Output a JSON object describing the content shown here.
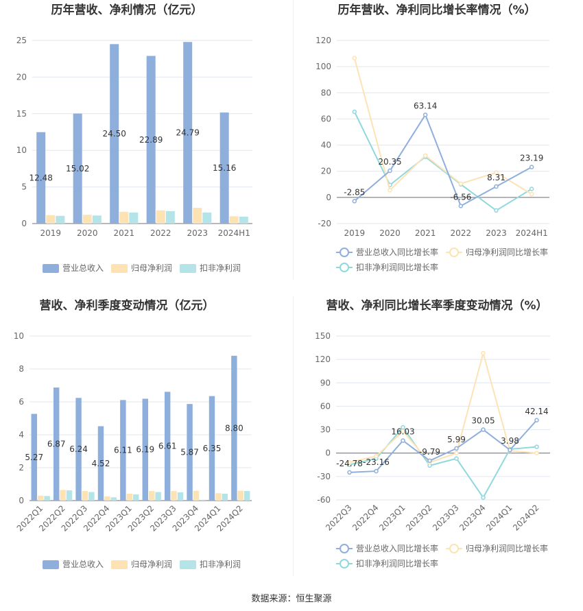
{
  "source": "数据来源：恒生聚源",
  "colors": {
    "revenue": "#8eaedc",
    "netprofit": "#fde3b4",
    "deducted": "#b4e4e8",
    "l_revenue": "#8eaedc",
    "l_netprofit": "#fde3b4",
    "l_deducted": "#8fd8dd"
  },
  "chart_data": [
    {
      "type": "bar",
      "title": "历年营收、净利情况（亿元）",
      "categories": [
        "2019",
        "2020",
        "2021",
        "2022",
        "2023",
        "2024H1"
      ],
      "series": [
        {
          "name": "营业总收入",
          "values": [
            12.48,
            15.02,
            24.5,
            22.89,
            24.79,
            15.16
          ],
          "labels": [
            "12.48",
            "15.02",
            "24.50",
            "22.89",
            "24.79",
            "15.16"
          ]
        },
        {
          "name": "归母净利润",
          "values": [
            1.15,
            1.2,
            1.6,
            1.8,
            2.15,
            1.0
          ]
        },
        {
          "name": "扣非净利润",
          "values": [
            1.05,
            1.1,
            1.5,
            1.7,
            1.5,
            0.95
          ]
        }
      ],
      "ylim": [
        0,
        25
      ],
      "yticks": [
        0,
        5,
        10,
        15,
        20,
        25
      ]
    },
    {
      "type": "line",
      "title": "历年营收、净利同比增长率情况（%）",
      "categories": [
        "2019",
        "2020",
        "2021",
        "2022",
        "2023",
        "2024H1"
      ],
      "series": [
        {
          "name": "营业总收入同比增长率",
          "values": [
            -2.85,
            20.35,
            63.14,
            -6.56,
            8.31,
            23.19
          ],
          "labels": [
            "-2.85",
            "20.35",
            "63.14",
            "-6.56",
            "8.31",
            "23.19"
          ]
        },
        {
          "name": "归母净利润同比增长率",
          "values": [
            106.5,
            5.5,
            32.0,
            10.5,
            19.0,
            2.5
          ]
        },
        {
          "name": "扣非净利润同比增长率",
          "values": [
            65.5,
            9.5,
            31.0,
            10.0,
            -10.0,
            6.5
          ]
        }
      ],
      "ylim": [
        -20,
        120
      ],
      "yticks": [
        -20,
        0,
        20,
        40,
        60,
        80,
        100,
        120
      ]
    },
    {
      "type": "bar",
      "title": "营收、净利季度变动情况（亿元）",
      "categories": [
        "2022Q1",
        "2022Q2",
        "2022Q3",
        "2022Q4",
        "2023Q1",
        "2023Q2",
        "2023Q3",
        "2023Q4",
        "2024Q1",
        "2024Q2"
      ],
      "series": [
        {
          "name": "营业总收入",
          "values": [
            5.27,
            6.87,
            6.24,
            4.52,
            6.11,
            6.19,
            6.61,
            5.87,
            6.35,
            8.8
          ],
          "labels": [
            "5.27",
            "6.87",
            "6.24",
            "4.52",
            "6.11",
            "6.19",
            "6.61",
            "5.87",
            "6.35",
            "8.80"
          ]
        },
        {
          "name": "归母净利润",
          "values": [
            0.3,
            0.65,
            0.58,
            0.25,
            0.42,
            0.58,
            0.58,
            0.6,
            0.45,
            0.6
          ]
        },
        {
          "name": "扣非净利润",
          "values": [
            0.28,
            0.62,
            0.52,
            0.2,
            0.38,
            0.52,
            0.5,
            0.05,
            0.42,
            0.58
          ]
        }
      ],
      "ylim": [
        0,
        10
      ],
      "yticks": [
        0,
        2,
        4,
        6,
        8,
        10
      ]
    },
    {
      "type": "line",
      "title": "营收、净利同比增长率季度变动情况（%）",
      "categories": [
        "2022Q3",
        "2022Q4",
        "2023Q1",
        "2023Q2",
        "2023Q3",
        "2023Q4",
        "2024Q1",
        "2024Q2"
      ],
      "series": [
        {
          "name": "营业总收入同比增长率",
          "values": [
            -24.78,
            -23.16,
            16.03,
            -9.79,
            5.99,
            30.05,
            3.98,
            42.14
          ],
          "labels": [
            "-24.78",
            "-23.16",
            "16.03",
            "-9.79",
            "5.99",
            "30.05",
            "3.98",
            "42.14"
          ]
        },
        {
          "name": "归母净利润同比增长率",
          "values": [
            -12,
            -4,
            28,
            -12,
            0,
            128,
            3,
            0
          ]
        },
        {
          "name": "扣非净利润同比增长率",
          "values": [
            -15,
            -7,
            33,
            -16,
            -7,
            -57,
            5,
            8
          ]
        }
      ],
      "ylim": [
        -60,
        150
      ],
      "yticks": [
        -60,
        -30,
        0,
        30,
        60,
        90,
        120,
        150
      ]
    }
  ]
}
